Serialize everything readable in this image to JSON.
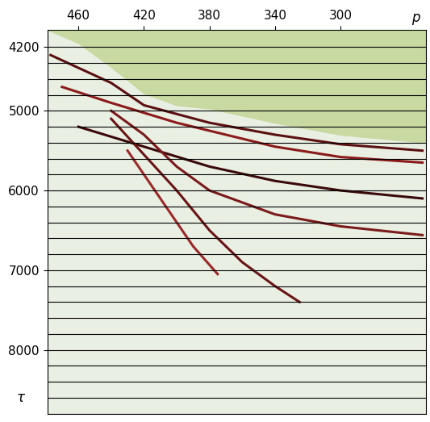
{
  "chart_data": {
    "type": "line",
    "x_label": "p",
    "y_label": "τ",
    "xlim": [
      479,
      248
    ],
    "ylim": [
      8800,
      3980
    ],
    "xticks": [
      460,
      420,
      380,
      340,
      300
    ],
    "yticks": [
      4200,
      5000,
      6000,
      7000,
      8000
    ],
    "grid": false,
    "reference_lines": [
      4200,
      4400,
      4600,
      4800,
      5000,
      5200,
      5400,
      5600,
      5800,
      6000,
      6200,
      6400,
      6600,
      6800,
      7000,
      7200,
      7400,
      7600,
      7800,
      8000,
      8200,
      8400,
      8600,
      8800
    ],
    "mute_zone": {
      "color": "#c8d9a2",
      "x": [
        479,
        460,
        440,
        420,
        400,
        390,
        380,
        340,
        300,
        248
      ],
      "values": [
        3980,
        4150,
        4450,
        4780,
        4930,
        4950,
        4970,
        5150,
        5300,
        5400
      ]
    },
    "series": [
      {
        "color": "#5a1010",
        "x": [
          477,
          440,
          420,
          380,
          340,
          300,
          250
        ],
        "values": [
          4300,
          4650,
          4930,
          5150,
          5300,
          5420,
          5500
        ]
      },
      {
        "color": "#8b1a1a",
        "x": [
          470,
          440,
          400,
          340,
          300,
          250
        ],
        "values": [
          4700,
          4900,
          5150,
          5450,
          5580,
          5650
        ]
      },
      {
        "color": "#3a0a0a",
        "x": [
          460,
          420,
          380,
          340,
          300,
          250
        ],
        "values": [
          5200,
          5450,
          5700,
          5880,
          6000,
          6100
        ]
      },
      {
        "color": "#7a1a1a",
        "x": [
          440,
          420,
          400,
          380,
          340,
          300,
          250
        ],
        "values": [
          5000,
          5300,
          5700,
          6000,
          6300,
          6450,
          6560
        ]
      },
      {
        "color": "#6a1515",
        "x": [
          440,
          420,
          400,
          380,
          360,
          340,
          325
        ],
        "values": [
          5100,
          5550,
          6000,
          6500,
          6900,
          7200,
          7400
        ]
      },
      {
        "color": "#9a2a2a",
        "x": [
          430,
          410,
          390,
          375
        ],
        "values": [
          5500,
          6100,
          6700,
          7050
        ]
      }
    ]
  }
}
